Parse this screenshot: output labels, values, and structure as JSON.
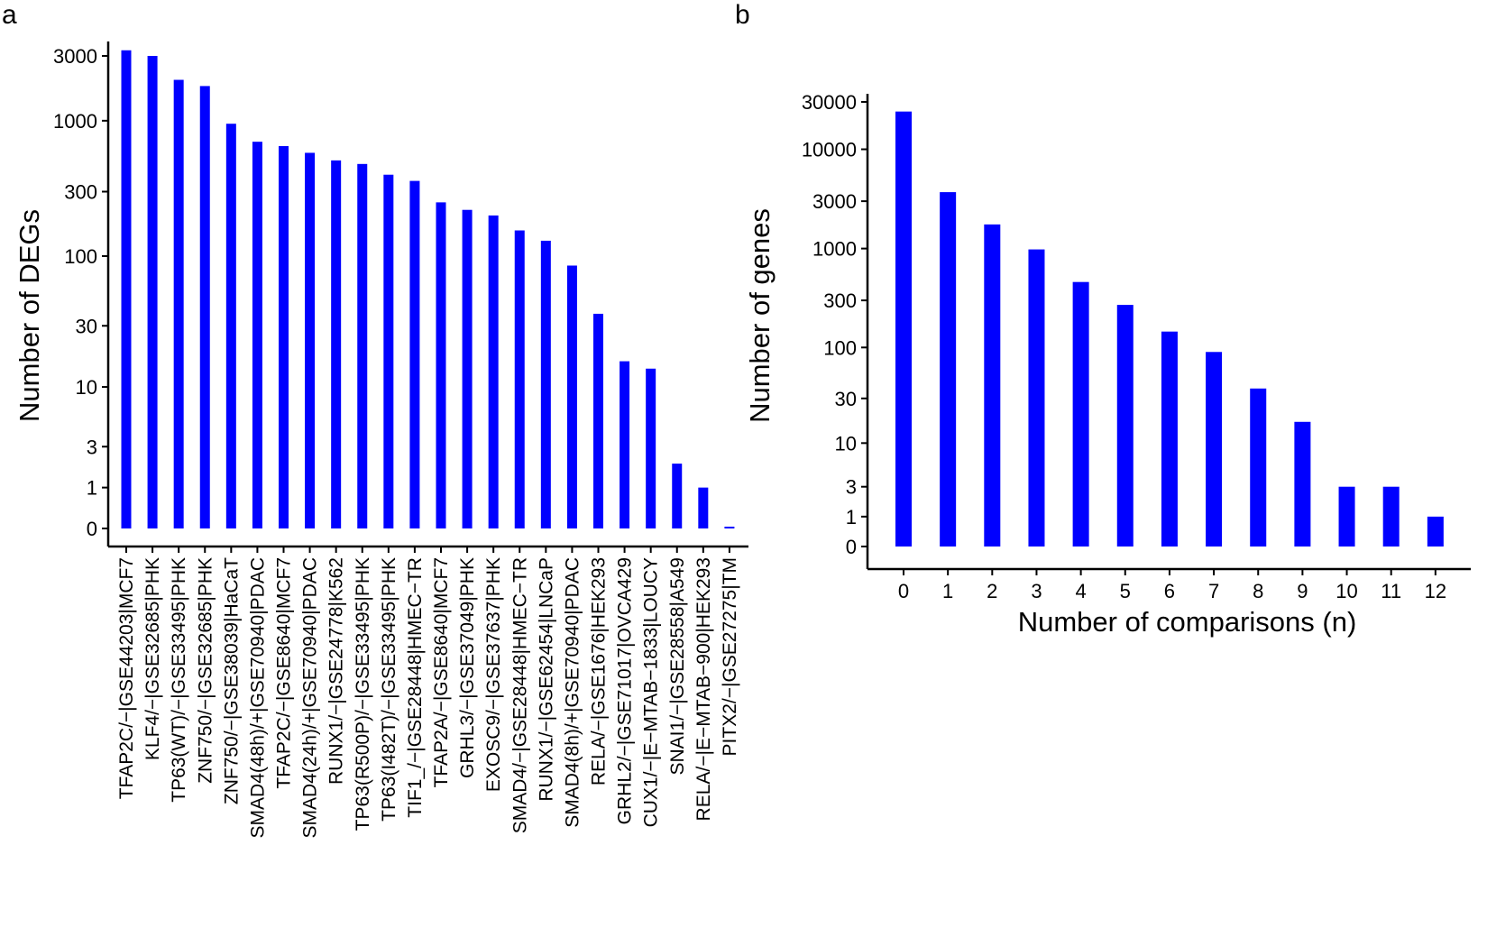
{
  "panels": {
    "a": "a",
    "b": "b"
  },
  "chart_data": [
    {
      "type": "bar",
      "panel": "a",
      "title": "",
      "xlabel": "",
      "ylabel": "Number of DEGs",
      "yscale": "pseudo-log10 (log10(y+1))",
      "ylim": [
        0,
        4000
      ],
      "yticks": [
        0,
        1,
        3,
        10,
        30,
        100,
        300,
        1000,
        3000
      ],
      "ytick_labels": [
        "0",
        "1",
        "3",
        "10",
        "30",
        "100",
        "300",
        "1000",
        "3000"
      ],
      "color": "#0000ff",
      "categories": [
        "TFAP2C/−|GSE44203|MCF7",
        "KLF4/−|GSE32685|PHK",
        "TP63(WT)/−|GSE33495|PHK",
        "ZNF750/−|GSE32685|PHK",
        "ZNF750/−|GSE38039|HaCaT",
        "SMAD4(48h)/+|GSE70940|PDAC",
        "TFAP2C/−|GSE8640|MCF7",
        "SMAD4(24h)/+|GSE70940|PDAC",
        "RUNX1/−|GSE24778|K562",
        "TP63(R500P)/−|GSE33495|PHK",
        "TP63(I482T)/−|GSE33495|PHK",
        "TIF1_/−|GSE28448|HMEC−TR",
        "TFAP2A/−|GSE8640|MCF7",
        "GRHL3/−|GSE37049|PHK",
        "EXOSC9/−|GSE37637|PHK",
        "SMAD4/−|GSE28448|HMEC−TR",
        "RUNX1/−|GSE62454|LNCaP",
        "SMAD4(8h)/+|GSE70940|PDAC",
        "RELA/−|GSE1676|HEK293",
        "GRHL2/−|GSE71017|OVCA429",
        "CUX1/−|E−MTAB−1833|LOUCY",
        "SNAI1/−|GSE28558|A549",
        "RELA/−|E−MTAB−900|HEK293",
        "PITX2/−|GSE27275|TM"
      ],
      "values": [
        3300,
        3000,
        2000,
        1800,
        950,
        700,
        650,
        580,
        510,
        480,
        400,
        360,
        250,
        220,
        200,
        155,
        130,
        85,
        37,
        16,
        14,
        2,
        1,
        0
      ]
    },
    {
      "type": "bar",
      "panel": "b",
      "title": "",
      "xlabel": "Number of comparisons (n)",
      "ylabel": "Number of genes",
      "yscale": "pseudo-log10 (log10(y+1))",
      "ylim": [
        0,
        35000
      ],
      "yticks": [
        0,
        1,
        3,
        10,
        30,
        100,
        300,
        1000,
        3000,
        10000,
        30000
      ],
      "ytick_labels": [
        "0",
        "1",
        "3",
        "10",
        "30",
        "100",
        "300",
        "1000",
        "3000",
        "10000",
        "30000"
      ],
      "color": "#0000ff",
      "categories": [
        "0",
        "1",
        "2",
        "3",
        "4",
        "5",
        "6",
        "7",
        "8",
        "9",
        "10",
        "11",
        "12"
      ],
      "values": [
        24000,
        3700,
        1750,
        980,
        460,
        270,
        145,
        90,
        38,
        17,
        3,
        3,
        1
      ]
    }
  ]
}
